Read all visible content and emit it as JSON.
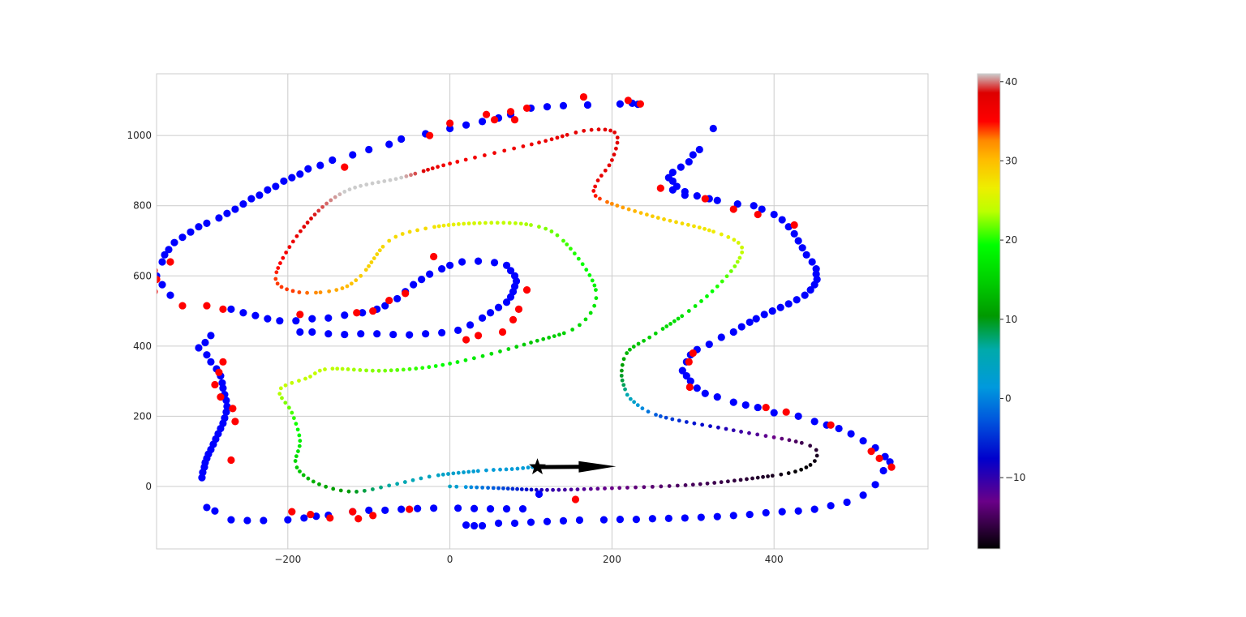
{
  "chart_data": {
    "type": "scatter",
    "title": "",
    "xlabel": "",
    "ylabel": "",
    "xlim": [
      -362,
      590
    ],
    "ylim": [
      -178,
      1176
    ],
    "x_ticks": [
      -200,
      0,
      200,
      400
    ],
    "y_ticks": [
      0,
      200,
      400,
      600,
      800,
      1000
    ],
    "x_tick_labels": [
      "−200",
      "0",
      "200",
      "400"
    ],
    "y_tick_labels": [
      "0",
      "200",
      "400",
      "600",
      "800",
      "1000"
    ],
    "grid": true,
    "colorbar": {
      "colormap": "nipy_spectral",
      "range": [
        -19,
        41
      ],
      "ticks": [
        -10,
        0,
        10,
        20,
        30,
        40
      ],
      "tick_labels": [
        "−10",
        "0",
        "10",
        "20",
        "30",
        "40"
      ]
    },
    "colors": {
      "blue_markers": "#0000ff",
      "red_markers": "#ff0000",
      "marker_and_arrow": "#000000"
    },
    "trajectory": {
      "description_points": [
        [
          0,
          0,
          4
        ],
        [
          60,
          -5,
          -3
        ],
        [
          120,
          -10,
          -10
        ],
        [
          200,
          -5,
          -13
        ],
        [
          300,
          5,
          -15
        ],
        [
          380,
          25,
          -17
        ],
        [
          430,
          45,
          -19
        ],
        [
          452,
          80,
          -18
        ],
        [
          440,
          120,
          -16
        ],
        [
          350,
          160,
          -10
        ],
        [
          260,
          200,
          -3
        ],
        [
          225,
          245,
          4
        ],
        [
          215,
          285,
          8
        ],
        [
          212,
          330,
          10
        ],
        [
          220,
          385,
          13
        ],
        [
          250,
          430,
          15
        ],
        [
          295,
          500,
          17
        ],
        [
          330,
          570,
          20
        ],
        [
          355,
          640,
          23
        ],
        [
          358,
          690,
          25
        ],
        [
          320,
          730,
          27
        ],
        [
          250,
          770,
          29
        ],
        [
          185,
          820,
          34
        ],
        [
          180,
          860,
          37
        ],
        [
          200,
          930,
          38
        ],
        [
          205,
          1005,
          38
        ],
        [
          170,
          1015,
          38
        ],
        [
          110,
          980,
          37
        ],
        [
          0,
          920,
          36
        ],
        [
          -60,
          880,
          41
        ],
        [
          -130,
          840,
          41
        ],
        [
          -180,
          740,
          38
        ],
        [
          -215,
          600,
          34
        ],
        [
          -190,
          555,
          34
        ],
        [
          -140,
          560,
          31
        ],
        [
          -110,
          600,
          29
        ],
        [
          -75,
          700,
          28
        ],
        [
          -30,
          735,
          28
        ],
        [
          30,
          750,
          25
        ],
        [
          100,
          745,
          23
        ],
        [
          140,
          700,
          21
        ],
        [
          180,
          560,
          18
        ],
        [
          160,
          460,
          16
        ],
        [
          100,
          410,
          14
        ],
        [
          0,
          350,
          19
        ],
        [
          -80,
          330,
          22
        ],
        [
          -150,
          335,
          24
        ],
        [
          -175,
          310,
          24
        ],
        [
          -210,
          275,
          24
        ],
        [
          -195,
          210,
          21
        ],
        [
          -185,
          130,
          18
        ],
        [
          -190,
          60,
          15
        ],
        [
          -165,
          10,
          12
        ],
        [
          -120,
          -15,
          10
        ],
        [
          -70,
          5,
          6
        ],
        [
          -20,
          30,
          4
        ],
        [
          40,
          45,
          2
        ],
        [
          80,
          50,
          2
        ],
        [
          108,
          57,
          2
        ]
      ]
    },
    "blue_points": [
      [
        210,
        1090
      ],
      [
        225,
        1092
      ],
      [
        232,
        1089
      ],
      [
        170,
        1087
      ],
      [
        140,
        1085
      ],
      [
        120,
        1082
      ],
      [
        100,
        1078
      ],
      [
        75,
        1060
      ],
      [
        60,
        1050
      ],
      [
        40,
        1040
      ],
      [
        20,
        1030
      ],
      [
        0,
        1020
      ],
      [
        -30,
        1005
      ],
      [
        -60,
        990
      ],
      [
        -75,
        975
      ],
      [
        -100,
        960
      ],
      [
        -120,
        945
      ],
      [
        -145,
        930
      ],
      [
        -160,
        915
      ],
      [
        -175,
        905
      ],
      [
        -185,
        890
      ],
      [
        -195,
        880
      ],
      [
        -205,
        870
      ],
      [
        -215,
        855
      ],
      [
        -225,
        845
      ],
      [
        -235,
        830
      ],
      [
        -245,
        820
      ],
      [
        -255,
        805
      ],
      [
        -265,
        790
      ],
      [
        -275,
        778
      ],
      [
        -285,
        765
      ],
      [
        -300,
        750
      ],
      [
        -310,
        740
      ],
      [
        -320,
        725
      ],
      [
        -330,
        710
      ],
      [
        -340,
        695
      ],
      [
        -347,
        675
      ],
      [
        -352,
        660
      ],
      [
        -355,
        640
      ],
      [
        -362,
        600
      ],
      [
        -355,
        575
      ],
      [
        -345,
        545
      ],
      [
        -270,
        505
      ],
      [
        -255,
        495
      ],
      [
        -240,
        487
      ],
      [
        -225,
        478
      ],
      [
        -210,
        472
      ],
      [
        -190,
        472
      ],
      [
        -170,
        478
      ],
      [
        -150,
        480
      ],
      [
        -130,
        488
      ],
      [
        -108,
        495
      ],
      [
        -90,
        505
      ],
      [
        -80,
        515
      ],
      [
        -65,
        535
      ],
      [
        -55,
        555
      ],
      [
        -45,
        575
      ],
      [
        -35,
        590
      ],
      [
        -25,
        605
      ],
      [
        -10,
        620
      ],
      [
        0,
        630
      ],
      [
        15,
        640
      ],
      [
        35,
        642
      ],
      [
        55,
        638
      ],
      [
        70,
        630
      ],
      [
        75,
        615
      ],
      [
        80,
        600
      ],
      [
        82,
        585
      ],
      [
        80,
        570
      ],
      [
        78,
        555
      ],
      [
        75,
        540
      ],
      [
        70,
        525
      ],
      [
        60,
        510
      ],
      [
        50,
        495
      ],
      [
        40,
        480
      ],
      [
        25,
        460
      ],
      [
        10,
        445
      ],
      [
        -10,
        438
      ],
      [
        -30,
        435
      ],
      [
        -50,
        432
      ],
      [
        -70,
        433
      ],
      [
        -90,
        435
      ],
      [
        -110,
        435
      ],
      [
        -130,
        433
      ],
      [
        -150,
        435
      ],
      [
        -170,
        440
      ],
      [
        -185,
        440
      ],
      [
        -295,
        430
      ],
      [
        -302,
        410
      ],
      [
        -310,
        395
      ],
      [
        -300,
        375
      ],
      [
        -295,
        355
      ],
      [
        -288,
        335
      ],
      [
        -283,
        315
      ],
      [
        -281,
        295
      ],
      [
        -280,
        280
      ],
      [
        -278,
        262
      ],
      [
        -276,
        245
      ],
      [
        -275,
        228
      ],
      [
        -276,
        212
      ],
      [
        -278,
        195
      ],
      [
        -280,
        180
      ],
      [
        -283,
        165
      ],
      [
        -286,
        150
      ],
      [
        -289,
        135
      ],
      [
        -292,
        120
      ],
      [
        -295,
        105
      ],
      [
        -298,
        92
      ],
      [
        -300,
        80
      ],
      [
        -302,
        68
      ],
      [
        -303,
        55
      ],
      [
        -305,
        40
      ],
      [
        -306,
        25
      ],
      [
        -300,
        -60
      ],
      [
        -290,
        -70
      ],
      [
        -270,
        -95
      ],
      [
        -250,
        -97
      ],
      [
        -230,
        -97
      ],
      [
        -200,
        -95
      ],
      [
        -180,
        -90
      ],
      [
        -165,
        -85
      ],
      [
        -150,
        -82
      ],
      [
        -120,
        -72
      ],
      [
        -100,
        -68
      ],
      [
        -80,
        -68
      ],
      [
        -60,
        -65
      ],
      [
        -40,
        -63
      ],
      [
        -20,
        -62
      ],
      [
        10,
        -62
      ],
      [
        30,
        -63
      ],
      [
        50,
        -64
      ],
      [
        70,
        -64
      ],
      [
        90,
        -64
      ],
      [
        110,
        -22
      ],
      [
        20,
        -110
      ],
      [
        30,
        -112
      ],
      [
        40,
        -112
      ],
      [
        60,
        -105
      ],
      [
        80,
        -105
      ],
      [
        100,
        -102
      ],
      [
        120,
        -100
      ],
      [
        140,
        -98
      ],
      [
        160,
        -96
      ],
      [
        190,
        -95
      ],
      [
        210,
        -94
      ],
      [
        230,
        -94
      ],
      [
        250,
        -92
      ],
      [
        270,
        -91
      ],
      [
        290,
        -90
      ],
      [
        310,
        -88
      ],
      [
        330,
        -86
      ],
      [
        350,
        -83
      ],
      [
        370,
        -80
      ],
      [
        390,
        -75
      ],
      [
        410,
        -72
      ],
      [
        430,
        -70
      ],
      [
        450,
        -65
      ],
      [
        470,
        -55
      ],
      [
        490,
        -45
      ],
      [
        510,
        -25
      ],
      [
        525,
        5
      ],
      [
        535,
        45
      ],
      [
        543,
        70
      ],
      [
        537,
        85
      ],
      [
        525,
        110
      ],
      [
        510,
        130
      ],
      [
        495,
        150
      ],
      [
        480,
        165
      ],
      [
        465,
        175
      ],
      [
        450,
        185
      ],
      [
        430,
        200
      ],
      [
        400,
        210
      ],
      [
        380,
        225
      ],
      [
        365,
        232
      ],
      [
        350,
        240
      ],
      [
        330,
        255
      ],
      [
        315,
        265
      ],
      [
        305,
        280
      ],
      [
        297,
        300
      ],
      [
        292,
        315
      ],
      [
        287,
        330
      ],
      [
        292,
        355
      ],
      [
        297,
        375
      ],
      [
        305,
        390
      ],
      [
        320,
        405
      ],
      [
        335,
        425
      ],
      [
        350,
        440
      ],
      [
        360,
        455
      ],
      [
        370,
        468
      ],
      [
        378,
        478
      ],
      [
        388,
        490
      ],
      [
        398,
        500
      ],
      [
        408,
        510
      ],
      [
        418,
        520
      ],
      [
        428,
        532
      ],
      [
        438,
        545
      ],
      [
        445,
        560
      ],
      [
        450,
        575
      ],
      [
        453,
        590
      ],
      [
        452,
        605
      ],
      [
        452,
        620
      ],
      [
        447,
        640
      ],
      [
        440,
        660
      ],
      [
        435,
        680
      ],
      [
        430,
        700
      ],
      [
        425,
        720
      ],
      [
        418,
        740
      ],
      [
        410,
        760
      ],
      [
        400,
        775
      ],
      [
        385,
        790
      ],
      [
        375,
        800
      ],
      [
        355,
        805
      ],
      [
        330,
        815
      ],
      [
        320,
        820
      ],
      [
        305,
        828
      ],
      [
        290,
        840
      ],
      [
        280,
        855
      ],
      [
        275,
        870
      ],
      [
        270,
        880
      ],
      [
        275,
        895
      ],
      [
        285,
        910
      ],
      [
        295,
        925
      ],
      [
        300,
        945
      ],
      [
        308,
        960
      ],
      [
        325,
        1020
      ],
      [
        290,
        830
      ],
      [
        275,
        845
      ]
    ],
    "red_points": [
      [
        165,
        1110
      ],
      [
        220,
        1100
      ],
      [
        235,
        1090
      ],
      [
        95,
        1078
      ],
      [
        75,
        1068
      ],
      [
        45,
        1060
      ],
      [
        55,
        1045
      ],
      [
        80,
        1045
      ],
      [
        0,
        1035
      ],
      [
        -25,
        1000
      ],
      [
        -130,
        910
      ],
      [
        -365,
        615
      ],
      [
        -362,
        590
      ],
      [
        -365,
        555
      ],
      [
        -345,
        640
      ],
      [
        -330,
        515
      ],
      [
        -300,
        515
      ],
      [
        -280,
        505
      ],
      [
        -185,
        490
      ],
      [
        -115,
        495
      ],
      [
        -95,
        500
      ],
      [
        -75,
        530
      ],
      [
        -55,
        550
      ],
      [
        -20,
        655
      ],
      [
        95,
        560
      ],
      [
        85,
        505
      ],
      [
        78,
        475
      ],
      [
        65,
        440
      ],
      [
        35,
        430
      ],
      [
        20,
        418
      ],
      [
        -280,
        355
      ],
      [
        -285,
        325
      ],
      [
        -290,
        290
      ],
      [
        -283,
        255
      ],
      [
        -268,
        222
      ],
      [
        -265,
        185
      ],
      [
        -270,
        75
      ],
      [
        -195,
        -72
      ],
      [
        -172,
        -80
      ],
      [
        -148,
        -90
      ],
      [
        -120,
        -72
      ],
      [
        -113,
        -92
      ],
      [
        -95,
        -83
      ],
      [
        -50,
        -65
      ],
      [
        155,
        -37
      ],
      [
        300,
        380
      ],
      [
        295,
        355
      ],
      [
        296,
        283
      ],
      [
        390,
        225
      ],
      [
        415,
        212
      ],
      [
        470,
        175
      ],
      [
        520,
        100
      ],
      [
        530,
        80
      ],
      [
        545,
        55
      ],
      [
        425,
        745
      ],
      [
        380,
        775
      ],
      [
        350,
        790
      ],
      [
        315,
        820
      ],
      [
        260,
        850
      ]
    ],
    "star_marker": [
      108,
      55
    ],
    "arrow": {
      "from": [
        108,
        55
      ],
      "to": [
        205,
        57
      ]
    }
  }
}
